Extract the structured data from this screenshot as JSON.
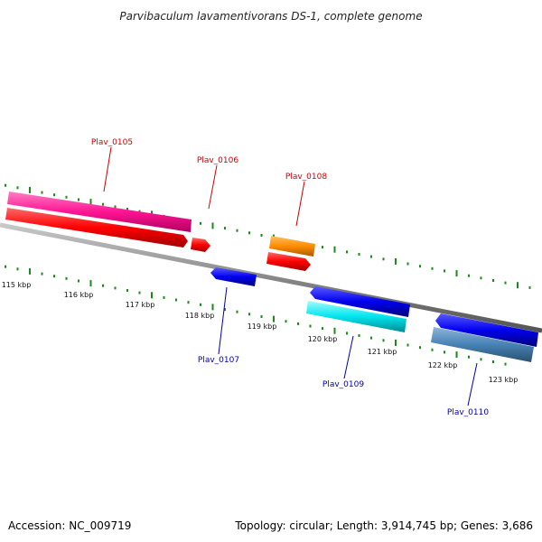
{
  "title": "Parvibaculum lavamentivorans DS-1, complete genome",
  "footer": {
    "accession": "Accession: NC_009719",
    "summary": "Topology: circular; Length: 3,914,745 bp; Genes: 3,686"
  },
  "axis": {
    "unit": "kbp",
    "tick_labels": [
      "115 kbp",
      "116 kbp",
      "117 kbp",
      "118 kbp",
      "119 kbp",
      "120 kbp",
      "121 kbp",
      "122 kbp",
      "123 kbp"
    ]
  },
  "genes": [
    {
      "name": "Plav_0105",
      "color_label": "#cc0000"
    },
    {
      "name": "Plav_0106",
      "color_label": "#cc0000"
    },
    {
      "name": "Plav_0107",
      "color_label": "#0000aa"
    },
    {
      "name": "Plav_0108",
      "color_label": "#cc0000"
    },
    {
      "name": "Plav_0109",
      "color_label": "#0000aa"
    },
    {
      "name": "Plav_0110",
      "color_label": "#0000aa"
    }
  ],
  "colors": {
    "backbone": "#888888",
    "ticks": "#1a8a1a",
    "magenta": "#ff1493",
    "red": "#ff0000",
    "orange": "#ff8c00",
    "blue": "#0000ee",
    "cyan": "#00e5ee",
    "steelblue": "#4682b4"
  }
}
